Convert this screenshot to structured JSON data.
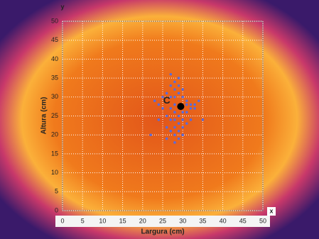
{
  "chart_data": {
    "type": "scatter",
    "xlabel": "Largura (cm)",
    "ylabel": "Altura (cm)",
    "x_axis_name": "x",
    "y_axis_name": "y",
    "xlim": [
      0,
      50
    ],
    "ylim": [
      0,
      50
    ],
    "xticks": [
      0,
      5,
      10,
      15,
      20,
      25,
      30,
      35,
      40,
      45,
      50
    ],
    "yticks": [
      0,
      5,
      10,
      15,
      20,
      25,
      30,
      35,
      40,
      45,
      50
    ],
    "grid": true,
    "series": [
      {
        "color": "#5a6bdc",
        "x": [
          28,
          28,
          28,
          28,
          28,
          28,
          28,
          28,
          28,
          29,
          29,
          29,
          29,
          29,
          29,
          29,
          30,
          30,
          30,
          30,
          30,
          30,
          27,
          27,
          27,
          27,
          27,
          26,
          26,
          26,
          31,
          31,
          31,
          31,
          32,
          32,
          32,
          33,
          33,
          25,
          25,
          24,
          24,
          23,
          22,
          35,
          34,
          27,
          26
        ],
        "values": [
          18,
          20,
          22,
          24,
          26,
          28,
          30,
          32,
          34,
          19,
          21,
          23,
          25,
          31,
          33,
          35,
          20,
          22,
          24,
          26,
          30,
          32,
          21,
          24,
          27,
          30,
          33,
          22,
          25,
          31,
          23,
          26,
          28,
          29,
          27,
          28,
          24,
          28,
          27,
          27,
          30,
          28,
          24,
          29,
          20,
          24,
          29,
          36,
          19
        ]
      },
      {
        "color": "#000000",
        "x": [
          29.5
        ],
        "values": [
          27.5
        ]
      }
    ],
    "annotations": [
      {
        "text": "C",
        "x": 26,
        "y": 29
      }
    ]
  }
}
